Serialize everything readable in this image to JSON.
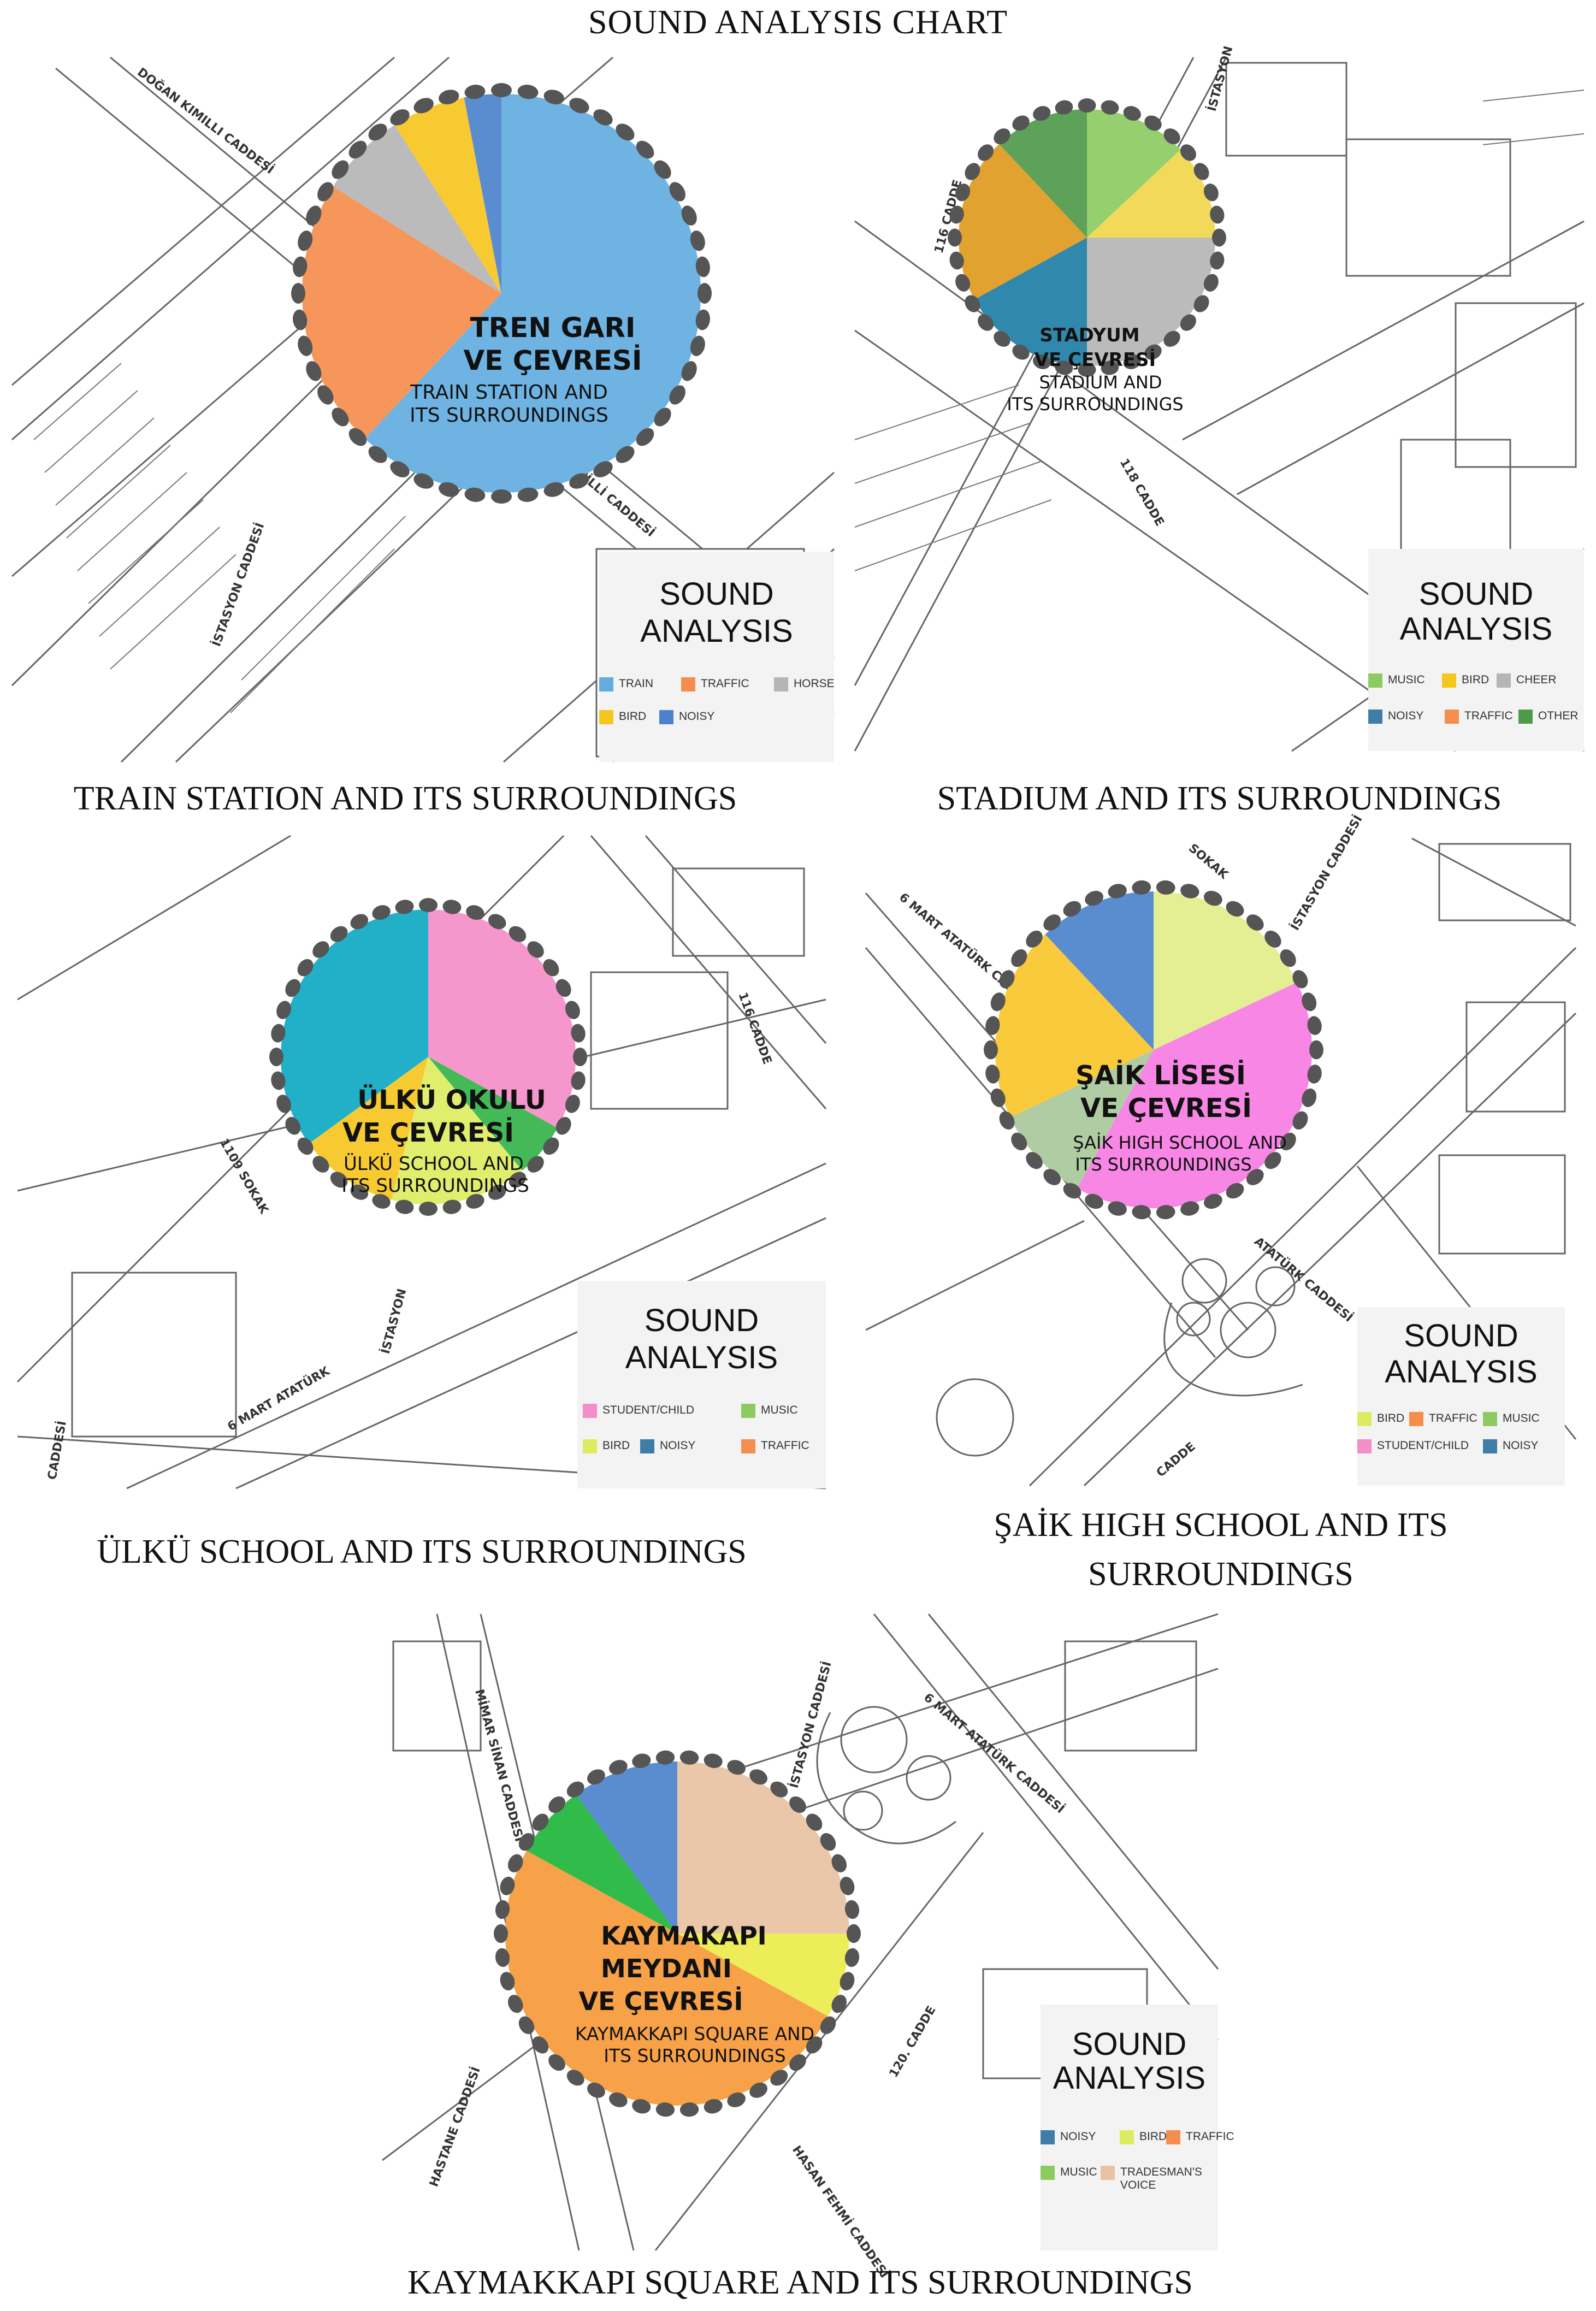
{
  "title": "SOUND ANALYSIS CHART",
  "legend_title_1": "SOUND",
  "legend_title_2": "ANALYSIS",
  "chart_data": [
    {
      "type": "pie",
      "caption": "TRAIN STATION AND ITS SURROUNDINGS",
      "label_tr_1": "TREN GARI",
      "label_tr_2": "VE ÇEVRESİ",
      "label_en_1": "TRAIN STATION AND",
      "label_en_2": "ITS SURROUNDINGS",
      "roads": [
        "DOĞAN KIMILLI CADDESİ",
        "İSTASYON CADDESİ",
        "KİMİLLİ CADDESİ"
      ],
      "slices": [
        {
          "label": "TRAIN",
          "value": 62,
          "color": "#62ACE0"
        },
        {
          "label": "TRAFFIC",
          "value": 22,
          "color": "#F58D4C"
        },
        {
          "label": "HORSE",
          "value": 7,
          "color": "#B5B5B5"
        },
        {
          "label": "BIRD",
          "value": 6,
          "color": "#F7C520"
        },
        {
          "label": "NOISY",
          "value": 3,
          "color": "#4C82CC"
        }
      ],
      "legend": [
        {
          "label": "TRAIN",
          "color": "#62ACE0"
        },
        {
          "label": "TRAFFIC",
          "color": "#F58D4C"
        },
        {
          "label": "HORSE",
          "color": "#B5B5B5"
        },
        {
          "label": "BIRD",
          "color": "#F7C520"
        },
        {
          "label": "NOISY",
          "color": "#4C82CC"
        }
      ]
    },
    {
      "type": "pie",
      "caption": "STADIUM AND ITS SURROUNDINGS",
      "label_tr_1": "STADYUM",
      "label_tr_2": "VE ÇEVRESİ",
      "label_en_1": "STADIUM AND",
      "label_en_2": "ITS SURROUNDINGS",
      "roads": [
        "İSTASYON",
        "116 CADDE",
        "118 CADDE"
      ],
      "slices": [
        {
          "label": "MUSIC",
          "value": 13,
          "color": "#8DCB62"
        },
        {
          "label": "BIRD",
          "value": 12,
          "color": "#F2D64C"
        },
        {
          "label": "CHEER",
          "value": 25,
          "color": "#B5B5B5"
        },
        {
          "label": "NOISY",
          "value": 17,
          "color": "#1E7FA5"
        },
        {
          "label": "TRAFFIC",
          "value": 21,
          "color": "#E09A1E"
        },
        {
          "label": "OTHER",
          "value": 12,
          "color": "#4F9A4A"
        }
      ],
      "legend": [
        {
          "label": "MUSIC",
          "color": "#8DCB62"
        },
        {
          "label": "BIRD",
          "color": "#F7C520"
        },
        {
          "label": "CHEER",
          "color": "#B5B5B5"
        },
        {
          "label": "NOISY",
          "color": "#3F7DA8"
        },
        {
          "label": "TRAFFIC",
          "color": "#F58D4C"
        },
        {
          "label": "OTHER",
          "color": "#4F9A4A"
        }
      ]
    },
    {
      "type": "pie",
      "caption": "ÜLKÜ SCHOOL AND ITS SURROUNDINGS",
      "label_tr_1": "ÜLKÜ OKULU",
      "label_tr_2": "VE ÇEVRESİ",
      "label_en_1": "ÜLKÜ SCHOOL AND",
      "label_en_2": "ITS SURROUNDINGS",
      "roads": [
        "1109 SOKAK",
        "116 CADDE",
        "6 MART ATATÜRK",
        "CADDESİ",
        "İSTASYON"
      ],
      "slices": [
        {
          "label": "STUDENT/CHILD",
          "value": 33,
          "color": "#F48EC8"
        },
        {
          "label": "MUSIC",
          "value": 6,
          "color": "#33B34A"
        },
        {
          "label": "BIRD",
          "value": 15,
          "color": "#DDEB61"
        },
        {
          "label": "TRAFFIC",
          "value": 11,
          "color": "#F7C520"
        },
        {
          "label": "NOISY",
          "value": 35,
          "color": "#0FA9C4"
        }
      ],
      "legend": [
        {
          "label": "STUDENT/CHILD",
          "color": "#F48EC8"
        },
        {
          "label": "MUSIC",
          "color": "#8DCB62"
        },
        {
          "label": "BIRD",
          "color": "#DDEB61"
        },
        {
          "label": "NOISY",
          "color": "#3F7DA8"
        },
        {
          "label": "TRAFFIC",
          "color": "#F58D4C"
        }
      ]
    },
    {
      "type": "pie",
      "caption": "ŞAİK HIGH SCHOOL AND ITS SURROUNDINGS",
      "caption_line_1": "ŞAİK HIGH SCHOOL AND ITS",
      "caption_line_2": "SURROUNDINGS",
      "label_tr_1": "ŞAİK LİSESİ",
      "label_tr_2": "VE ÇEVRESİ",
      "label_en_1": "ŞAİK HIGH SCHOOL AND",
      "label_en_2": "ITS SURROUNDINGS",
      "roads": [
        "SOKAK",
        "İSTASYON CADDESİ",
        "6 MART ATATÜRK CADDESİ",
        "CADDE",
        "ATATÜRK CADDESİ"
      ],
      "slices": [
        {
          "label": "BIRD",
          "value": 18,
          "color": "#E2EE8A"
        },
        {
          "label": "STUDENT/CHILD",
          "value": 40,
          "color": "#F77CE3"
        },
        {
          "label": "MUSIC",
          "value": 10,
          "color": "#A8C89A"
        },
        {
          "label": "TRAFFIC",
          "value": 20,
          "color": "#F8C62A"
        },
        {
          "label": "NOISY",
          "value": 12,
          "color": "#4C82CC"
        }
      ],
      "legend": [
        {
          "label": "BIRD",
          "color": "#DDEB61"
        },
        {
          "label": "TRAFFIC",
          "color": "#F58D4C"
        },
        {
          "label": "MUSIC",
          "color": "#8DCB62"
        },
        {
          "label": "STUDENT/CHILD",
          "color": "#F48EC8"
        },
        {
          "label": "NOISY",
          "color": "#3F7DA8"
        }
      ]
    },
    {
      "type": "pie",
      "caption": "KAYMAKKAPI SQUARE AND ITS SURROUNDINGS",
      "label_tr_1": "KAYMAKAPI",
      "label_tr_2": "MEYDANI",
      "label_tr_3": "VE ÇEVRESİ",
      "label_en_1": "KAYMAKKAPI SQUARE AND",
      "label_en_2": "ITS SURROUNDINGS",
      "roads": [
        "MİMAR SİNAN CADDESİ",
        "İSTASYON CADDESİ",
        "6 MART ATATÜRK CADDESİ",
        "120. CADDE",
        "HASTANE CADDESİ",
        "HASAN FEHMİ CADDESİ"
      ],
      "slices": [
        {
          "label": "TRADESMAN'S VOICE",
          "value": 25,
          "color": "#E8C2A2"
        },
        {
          "label": "BIRD",
          "value": 8,
          "color": "#EBEB4C"
        },
        {
          "label": "TRAFFIC",
          "value": 50,
          "color": "#F6993A"
        },
        {
          "label": "MUSIC",
          "value": 7,
          "color": "#1FB53B"
        },
        {
          "label": "NOISY",
          "value": 10,
          "color": "#4C82CC"
        }
      ],
      "legend": [
        {
          "label": "NOISY",
          "color": "#3F7DA8"
        },
        {
          "label": "BIRD",
          "color": "#DDEB61"
        },
        {
          "label": "TRAFFIC",
          "color": "#F58D4C"
        },
        {
          "label": "MUSIC",
          "color": "#8DCB62"
        },
        {
          "label": "TRADESMAN'S VOICE",
          "color": "#E8C2A2"
        }
      ]
    }
  ]
}
